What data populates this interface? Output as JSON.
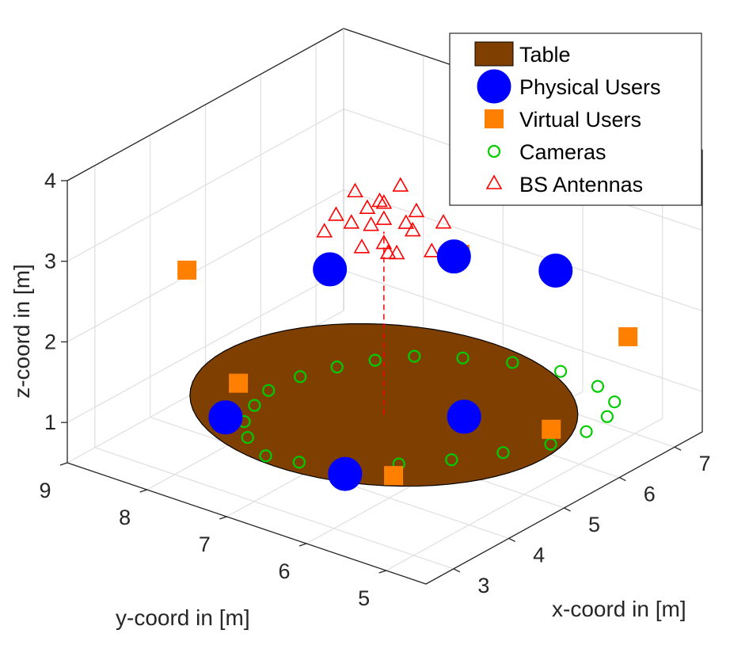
{
  "chart_data": {
    "type": "scatter3d",
    "xlabel": "x-coord in [m]",
    "ylabel": "y-coord in [m]",
    "zlabel": "z-coord in [m]",
    "xlim": [
      2.5,
      7.5
    ],
    "ylim": [
      4.5,
      9.0
    ],
    "zlim": [
      0.5,
      4.0
    ],
    "xticks": [
      "3",
      "4",
      "5",
      "6",
      "7"
    ],
    "yticks": [
      "5",
      "6",
      "7",
      "8",
      "9"
    ],
    "zticks": [
      "1",
      "2",
      "3",
      "4"
    ],
    "grid": true,
    "legend_position": "top-right",
    "table": {
      "name": "Table",
      "color": "#7F3F00",
      "center": [
        5.2,
        6.9,
        0.9
      ],
      "radius": 2.0
    },
    "series": [
      {
        "name": "Physical Users",
        "marker": "circle",
        "color": "#0000FF",
        "points": [
          [
            3.2,
            7.5,
            1.3
          ],
          [
            4.8,
            7.3,
            2.6
          ],
          [
            6.9,
            7.2,
            2.0
          ],
          [
            6.0,
            5.3,
            2.8
          ],
          [
            4.2,
            5.2,
            1.7
          ],
          [
            3.2,
            6.0,
            1.1
          ]
        ]
      },
      {
        "name": "Virtual Users",
        "marker": "square",
        "color": "#FF8000",
        "points": [
          [
            3.0,
            7.2,
            1.9
          ],
          [
            3.8,
            8.4,
            2.6
          ],
          [
            6.0,
            6.5,
            2.6
          ],
          [
            6.3,
            4.6,
            2.1
          ],
          [
            5.2,
            4.8,
            1.3
          ],
          [
            3.5,
            5.6,
            1.1
          ]
        ]
      },
      {
        "name": "Cameras",
        "marker": "circle-open",
        "color": "#00CC00",
        "points": [
          [
            3.35,
            7.1,
            0.9
          ],
          [
            3.6,
            7.5,
            0.9
          ],
          [
            3.9,
            7.75,
            0.9
          ],
          [
            4.3,
            7.9,
            0.9
          ],
          [
            4.7,
            8.0,
            0.9
          ],
          [
            5.2,
            7.95,
            0.9
          ],
          [
            5.65,
            7.8,
            0.9
          ],
          [
            6.05,
            7.6,
            0.9
          ],
          [
            6.4,
            7.35,
            0.9
          ],
          [
            6.7,
            6.95,
            0.9
          ],
          [
            6.95,
            6.5,
            0.9
          ],
          [
            7.1,
            6.0,
            0.9
          ],
          [
            7.05,
            5.5,
            0.9
          ],
          [
            6.85,
            5.15,
            0.9
          ],
          [
            6.5,
            5.0,
            0.9
          ],
          [
            6.05,
            4.95,
            0.9
          ],
          [
            5.55,
            5.05,
            0.9
          ],
          [
            5.05,
            5.3,
            0.9
          ],
          [
            4.55,
            5.6,
            0.9
          ],
          [
            4.1,
            5.95,
            0.9
          ],
          [
            3.7,
            6.35,
            0.9
          ],
          [
            3.45,
            6.75,
            0.9
          ]
        ]
      },
      {
        "name": "BS Antennas",
        "marker": "triangle-open",
        "color": "#FF0000",
        "points": [
          [
            5.2,
            6.9,
            2.9
          ],
          [
            5.0,
            6.6,
            2.95
          ],
          [
            5.4,
            7.2,
            2.95
          ],
          [
            4.8,
            6.9,
            3.0
          ],
          [
            5.6,
            6.9,
            3.0
          ],
          [
            5.2,
            6.3,
            3.0
          ],
          [
            5.2,
            7.5,
            3.05
          ],
          [
            4.7,
            6.5,
            3.1
          ],
          [
            5.7,
            7.3,
            3.1
          ],
          [
            4.7,
            7.3,
            3.1
          ],
          [
            5.7,
            6.5,
            3.1
          ],
          [
            5.2,
            6.9,
            3.2
          ],
          [
            4.9,
            7.1,
            3.2
          ],
          [
            5.5,
            6.7,
            3.25
          ],
          [
            5.0,
            6.4,
            3.3
          ],
          [
            5.4,
            7.4,
            3.3
          ],
          [
            5.2,
            6.9,
            3.4
          ],
          [
            4.9,
            6.9,
            3.45
          ],
          [
            5.5,
            6.9,
            3.5
          ]
        ]
      }
    ],
    "legend": [
      {
        "label": "Table",
        "marker": "patch",
        "color": "#7F3F00"
      },
      {
        "label": "Physical Users",
        "marker": "circle",
        "color": "#0000FF"
      },
      {
        "label": "Virtual Users",
        "marker": "square",
        "color": "#FF8000"
      },
      {
        "label": "Cameras",
        "marker": "circle-open",
        "color": "#00CC00"
      },
      {
        "label": "BS Antennas",
        "marker": "triangle-open",
        "color": "#FF0000"
      }
    ]
  }
}
